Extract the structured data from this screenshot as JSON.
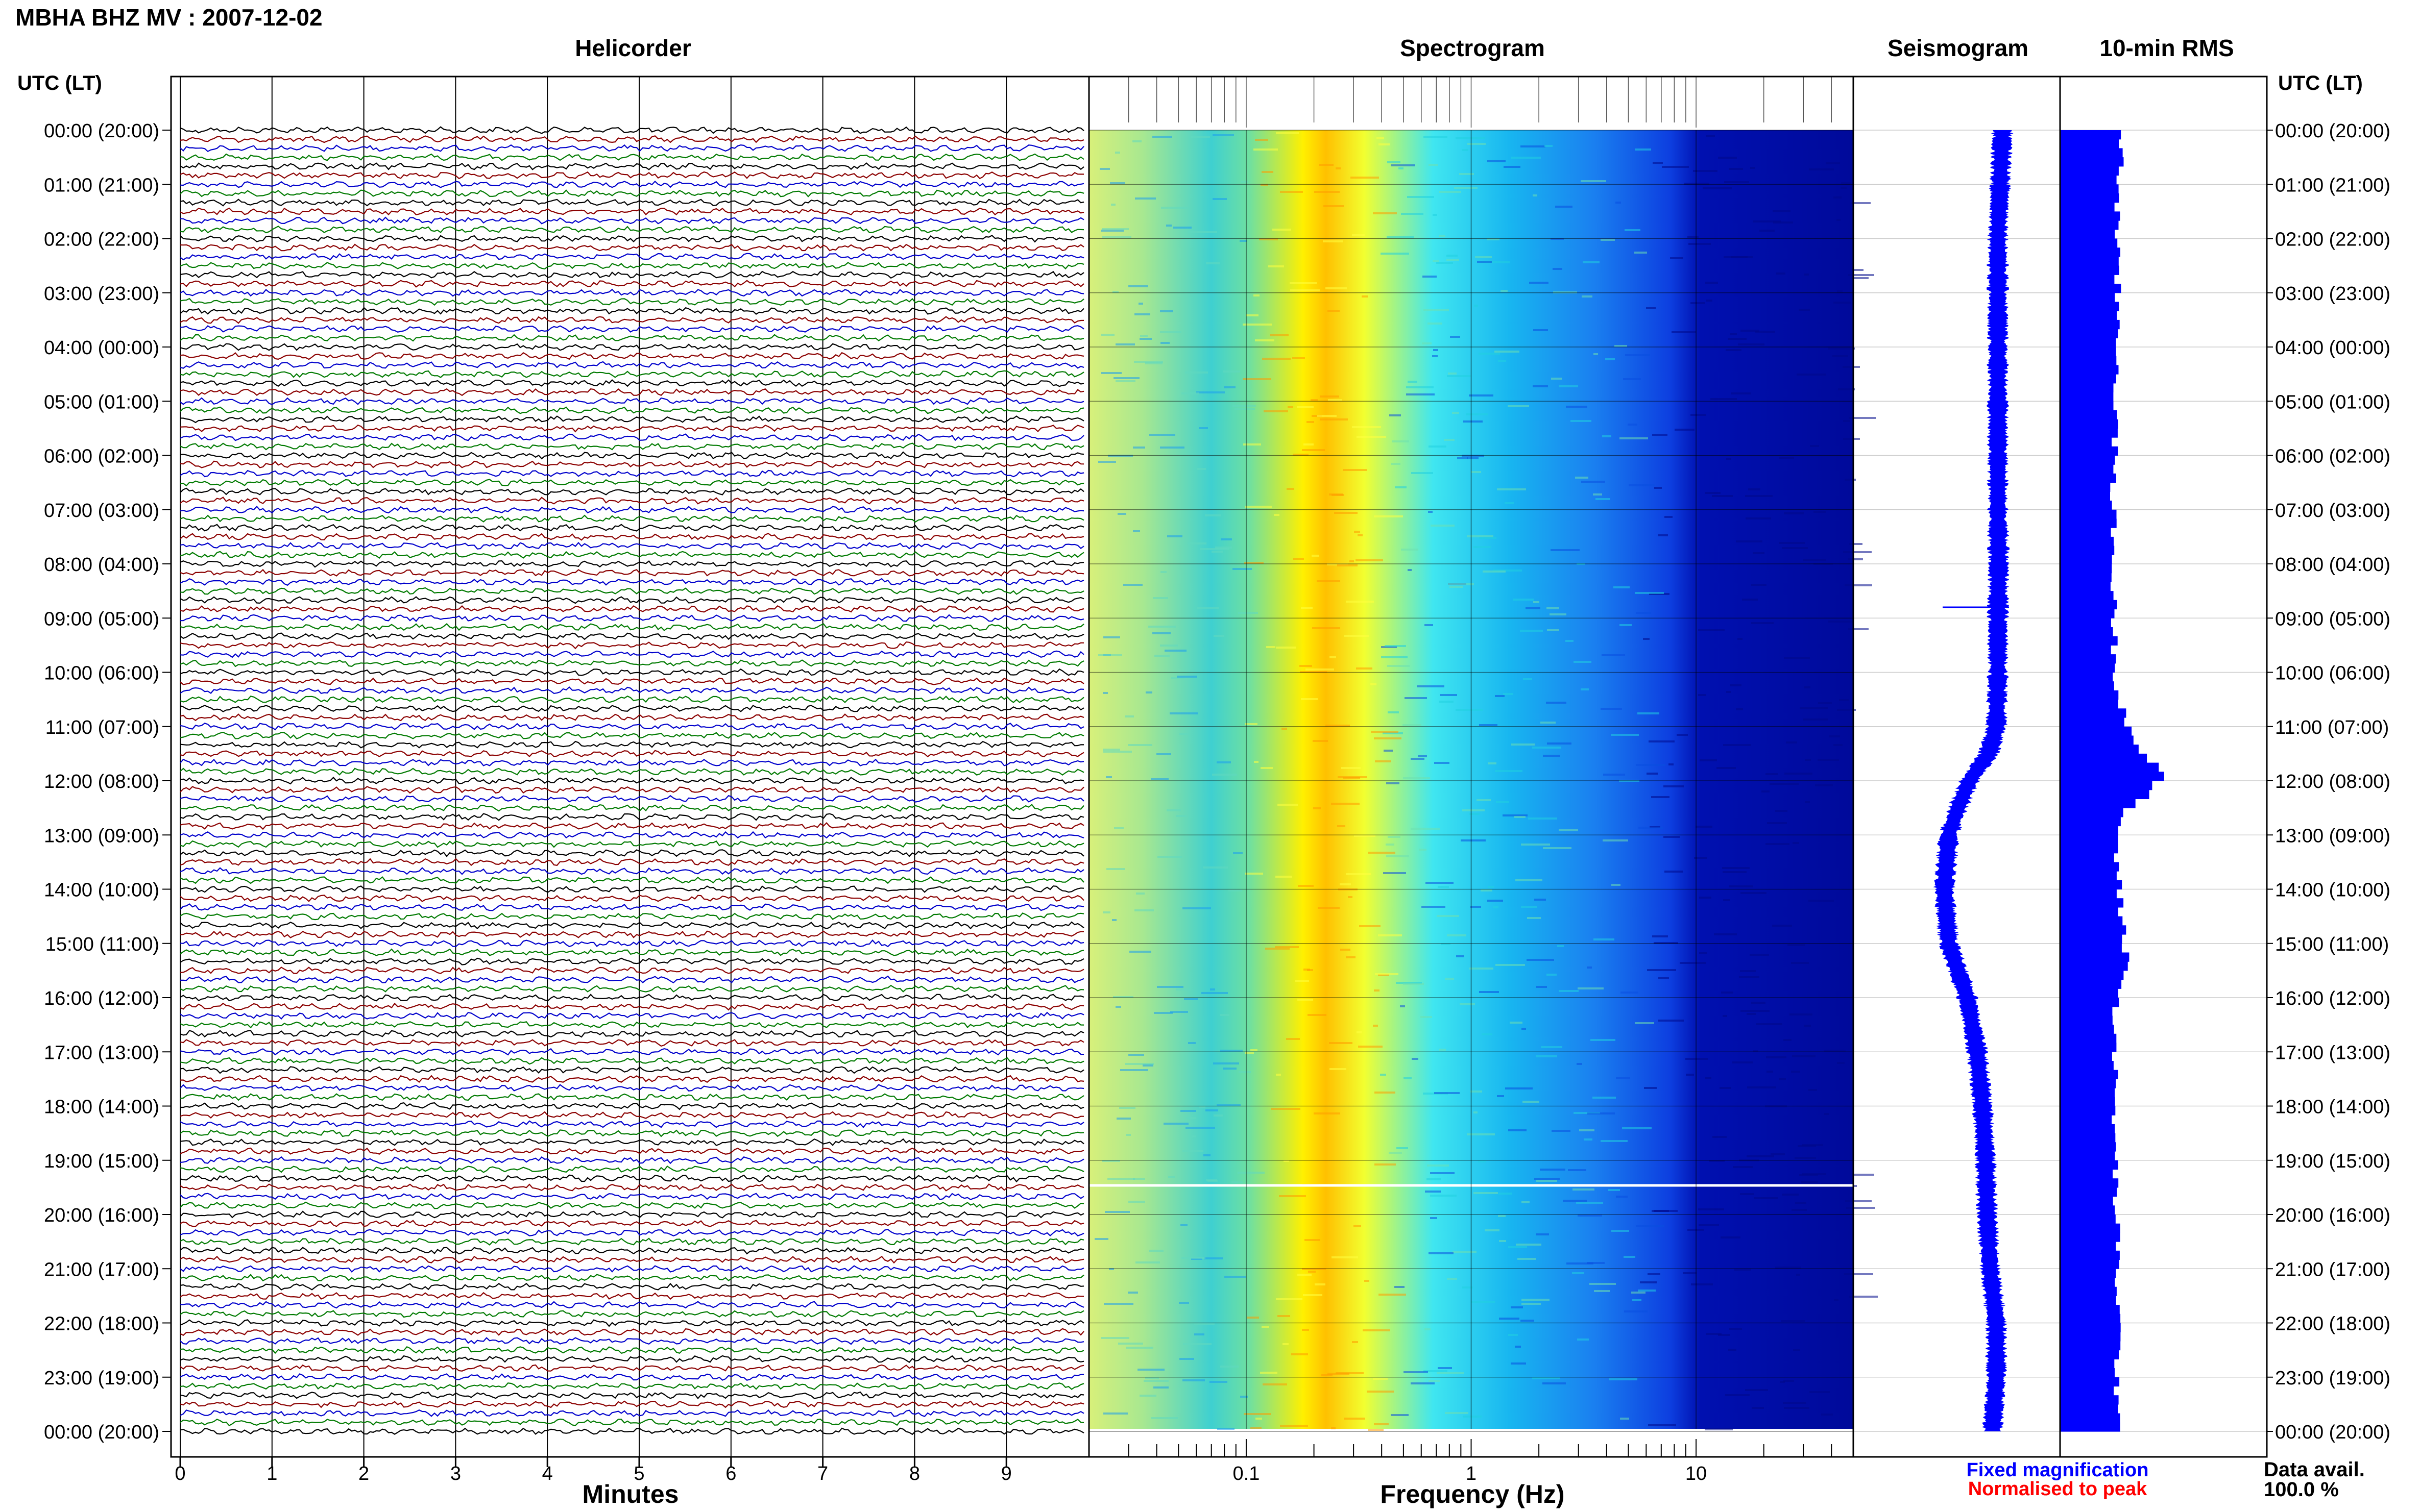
{
  "header": {
    "title": "MBHA BHZ MV : 2007-12-02",
    "utc_lt_left": "UTC (LT)",
    "utc_lt_right": "UTC (LT)"
  },
  "panels": {
    "helicorder": "Helicorder",
    "spectrogram": "Spectrogram",
    "seismogram": "Seismogram",
    "rms": "10-min RMS"
  },
  "axes": {
    "minutes_label": "Minutes",
    "frequency_label": "Frequency (Hz)"
  },
  "legend": {
    "fixed": "Fixed magnification",
    "fixed_color": "#0000ff",
    "normalised": "Normalised to peak",
    "normalised_color": "#ff0000"
  },
  "availability": {
    "label": "Data avail.",
    "value": "100.0 %"
  },
  "colors": {
    "trace_cycle": [
      "#000000",
      "#8b0000",
      "#0000cc",
      "#007a00"
    ],
    "seismogram": "#0000ff",
    "rms": "#0000ff"
  },
  "chart_data": [
    {
      "type": "line",
      "name": "helicorder",
      "title": "Helicorder",
      "xlabel": "Minutes",
      "x_ticks": [
        0,
        1,
        2,
        3,
        4,
        5,
        6,
        7,
        8,
        9
      ],
      "xlim": [
        0,
        10
      ],
      "rows_per_hour": 6,
      "hours": 24,
      "y_tick_labels": [
        "00:00 (20:00)",
        "01:00 (21:00)",
        "02:00 (22:00)",
        "03:00 (23:00)",
        "04:00 (00:00)",
        "05:00 (01:00)",
        "06:00 (02:00)",
        "07:00 (03:00)",
        "08:00 (04:00)",
        "09:00 (05:00)",
        "10:00 (06:00)",
        "11:00 (07:00)",
        "12:00 (08:00)",
        "13:00 (09:00)",
        "14:00 (10:00)",
        "15:00 (11:00)",
        "16:00 (12:00)",
        "17:00 (13:00)",
        "18:00 (14:00)",
        "19:00 (15:00)",
        "20:00 (16:00)",
        "21:00 (17:00)",
        "22:00 (18:00)",
        "23:00 (19:00)",
        "00:00 (20:00)"
      ]
    },
    {
      "type": "heatmap",
      "name": "spectrogram",
      "title": "Spectrogram",
      "xlabel": "Frequency (Hz)",
      "x_scale": "log",
      "xlim": [
        0.02,
        50
      ],
      "x_tick_labels": [
        "0.1",
        "1",
        "10"
      ],
      "x_tick_values": [
        0.1,
        1,
        10
      ],
      "peak_band_hz": [
        0.2,
        0.3
      ],
      "colormap": [
        "#ffffaa",
        "#ffff00",
        "#ffa000",
        "#00ffff",
        "#0080ff",
        "#0000aa"
      ]
    },
    {
      "type": "line",
      "name": "seismogram",
      "title": "Seismogram",
      "hours": [
        0,
        1,
        2,
        3,
        4,
        5,
        6,
        7,
        8,
        9,
        10,
        11,
        11.5,
        12,
        12.5,
        13,
        14,
        15,
        15.5,
        16,
        17,
        18,
        19,
        20,
        21,
        22,
        23,
        24
      ],
      "values": [
        0.58,
        0.55,
        0.52,
        0.52,
        0.52,
        0.52,
        0.52,
        0.52,
        0.53,
        0.52,
        0.52,
        0.5,
        0.4,
        0.15,
        0.0,
        -0.12,
        -0.18,
        -0.12,
        0.0,
        0.12,
        0.25,
        0.32,
        0.36,
        0.38,
        0.42,
        0.5,
        0.5,
        0.45
      ]
    },
    {
      "type": "bar",
      "name": "rms",
      "title": "10-min RMS",
      "bins": 144,
      "profile_hours": [
        0,
        2,
        4,
        6,
        8,
        10,
        11,
        11.5,
        12,
        12.5,
        13,
        14,
        15,
        15.5,
        16,
        18,
        20,
        22,
        24
      ],
      "profile_values": [
        0.55,
        0.5,
        0.52,
        0.48,
        0.47,
        0.49,
        0.6,
        0.75,
        0.9,
        0.6,
        0.5,
        0.52,
        0.58,
        0.6,
        0.5,
        0.48,
        0.5,
        0.52,
        0.5
      ]
    }
  ]
}
